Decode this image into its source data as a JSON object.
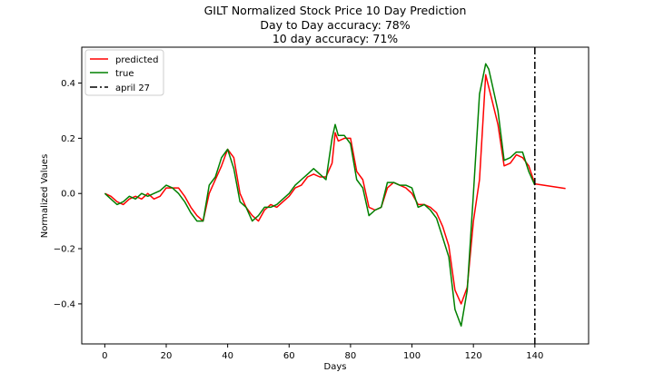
{
  "chart_data": {
    "type": "line",
    "title_lines": [
      "GILT Normalized Stock Price 10 Day Prediction",
      "Day to Day accuracy: 78%",
      "10 day accuracy: 71%"
    ],
    "xlabel": "Days",
    "ylabel": "Normalized Values",
    "xlim": [
      -7.5,
      157.5
    ],
    "ylim": [
      -0.545,
      0.53
    ],
    "xticks": [
      0,
      20,
      40,
      60,
      80,
      100,
      120,
      140
    ],
    "yticks": [
      -0.4,
      -0.2,
      0.0,
      0.2,
      0.4
    ],
    "ytick_labels": [
      "−0.4",
      "−0.2",
      "0.0",
      "0.2",
      "0.4"
    ],
    "legend_position": "top-left",
    "series": [
      {
        "name": "predicted",
        "color": "#ff0000",
        "x": [
          0,
          2,
          4,
          6,
          8,
          10,
          12,
          14,
          16,
          18,
          20,
          22,
          24,
          26,
          28,
          30,
          32,
          34,
          36,
          38,
          40,
          42,
          44,
          46,
          48,
          50,
          52,
          54,
          56,
          58,
          60,
          62,
          64,
          66,
          68,
          70,
          72,
          74,
          75,
          76,
          78,
          80,
          82,
          84,
          86,
          88,
          90,
          92,
          94,
          96,
          98,
          100,
          102,
          104,
          106,
          108,
          110,
          112,
          114,
          116,
          118,
          120,
          122,
          124,
          126,
          128,
          130,
          132,
          134,
          136,
          138,
          140,
          150
        ],
        "y": [
          0.0,
          -0.01,
          -0.03,
          -0.04,
          -0.02,
          -0.01,
          -0.02,
          0.0,
          -0.02,
          -0.01,
          0.02,
          0.02,
          0.02,
          -0.01,
          -0.05,
          -0.08,
          -0.1,
          0.0,
          0.05,
          0.1,
          0.16,
          0.13,
          0.0,
          -0.05,
          -0.08,
          -0.1,
          -0.06,
          -0.04,
          -0.05,
          -0.03,
          -0.01,
          0.02,
          0.03,
          0.06,
          0.07,
          0.06,
          0.06,
          0.11,
          0.22,
          0.19,
          0.2,
          0.2,
          0.08,
          0.05,
          -0.05,
          -0.06,
          -0.05,
          0.02,
          0.04,
          0.03,
          0.02,
          0.0,
          -0.04,
          -0.04,
          -0.05,
          -0.07,
          -0.12,
          -0.19,
          -0.35,
          -0.4,
          -0.34,
          -0.1,
          0.05,
          0.43,
          0.34,
          0.25,
          0.1,
          0.11,
          0.14,
          0.13,
          0.1,
          0.035,
          0.018
        ]
      },
      {
        "name": "true",
        "color": "#008000",
        "x": [
          0,
          2,
          4,
          6,
          8,
          10,
          12,
          14,
          16,
          18,
          20,
          22,
          24,
          26,
          28,
          30,
          32,
          34,
          36,
          38,
          40,
          42,
          44,
          46,
          48,
          50,
          52,
          54,
          56,
          58,
          60,
          62,
          64,
          66,
          68,
          70,
          72,
          74,
          75,
          76,
          78,
          80,
          82,
          84,
          86,
          88,
          90,
          92,
          94,
          96,
          98,
          100,
          102,
          104,
          106,
          108,
          110,
          112,
          114,
          116,
          118,
          120,
          122,
          124,
          125,
          126,
          128,
          130,
          132,
          134,
          136,
          138,
          140
        ],
        "y": [
          0.0,
          -0.02,
          -0.04,
          -0.03,
          -0.01,
          -0.02,
          0.0,
          -0.01,
          0.0,
          0.01,
          0.03,
          0.02,
          0.0,
          -0.03,
          -0.07,
          -0.1,
          -0.1,
          0.03,
          0.06,
          0.13,
          0.16,
          0.09,
          -0.03,
          -0.05,
          -0.1,
          -0.08,
          -0.05,
          -0.05,
          -0.04,
          -0.02,
          0.0,
          0.03,
          0.05,
          0.07,
          0.09,
          0.07,
          0.05,
          0.2,
          0.25,
          0.21,
          0.21,
          0.18,
          0.05,
          0.02,
          -0.08,
          -0.06,
          -0.05,
          0.04,
          0.04,
          0.03,
          0.03,
          0.02,
          -0.05,
          -0.04,
          -0.06,
          -0.09,
          -0.16,
          -0.23,
          -0.42,
          -0.48,
          -0.35,
          0.0,
          0.36,
          0.47,
          0.45,
          0.4,
          0.3,
          0.12,
          0.13,
          0.15,
          0.15,
          0.08,
          0.03
        ]
      },
      {
        "name": "april 27",
        "color": "#000000",
        "dash": "dashdot",
        "vline_x": 140
      }
    ]
  }
}
